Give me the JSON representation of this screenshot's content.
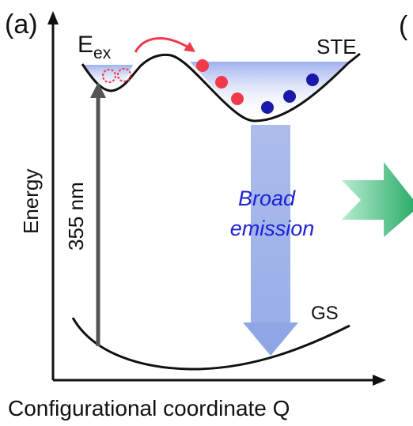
{
  "panel_label": "(a)",
  "next_panel_label_partial": "(",
  "excited_state_label": "E",
  "excited_state_subscript": "ex",
  "ste_label": "STE",
  "ground_state_label": "GS",
  "excitation_label": "355 nm",
  "emission_label_line1": "Broad",
  "emission_label_line2": "emission",
  "y_axis_label": "Energy",
  "x_axis_label": "Configurational coordinate Q",
  "colors": {
    "axis": "#111111",
    "excitation_arrow": "#555555",
    "emission_text": "#1f1fd6",
    "red_carrier": "#f03a4a",
    "blue_carrier": "#1a1aa8",
    "hop_arrow": "#f03a4a",
    "next_arrow": "#3cb87a"
  }
}
